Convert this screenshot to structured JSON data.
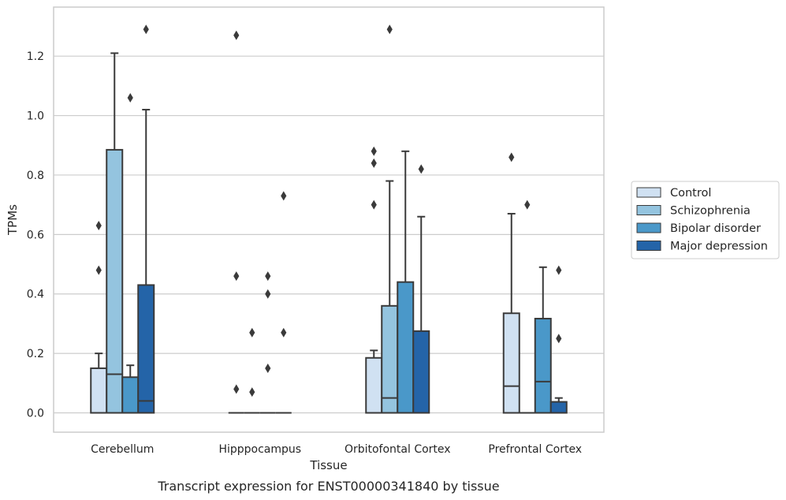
{
  "chart_data": {
    "type": "box",
    "title": "Transcript expression for ENST00000341840 by tissue",
    "xlabel": "Tissue",
    "ylabel": "TPMs",
    "ylim": [
      -0.065,
      1.365
    ],
    "yticks": [
      "0.0",
      "0.2",
      "0.4",
      "0.6",
      "0.8",
      "1.0",
      "1.2"
    ],
    "grid": true,
    "legend_position": "right",
    "categories": [
      "Cerebellum",
      "Hipppocampus",
      "Orbitofontal Cortex",
      "Prefrontal Cortex"
    ],
    "series": [
      {
        "name": "Control",
        "color": "#d0e1f2",
        "boxes": [
          {
            "q1": 0.0,
            "median": 0.0,
            "q3": 0.15,
            "whisker_low": 0.0,
            "whisker_high": 0.2,
            "outliers": [
              0.48,
              0.63
            ]
          },
          {
            "q1": 0.0,
            "median": 0.0,
            "q3": 0.0,
            "whisker_low": 0.0,
            "whisker_high": 0.0,
            "outliers": [
              0.08,
              0.46,
              1.27
            ]
          },
          {
            "q1": 0.0,
            "median": 0.0,
            "q3": 0.185,
            "whisker_low": 0.0,
            "whisker_high": 0.21,
            "outliers": [
              0.7,
              0.84,
              0.88
            ]
          },
          {
            "q1": 0.0,
            "median": 0.09,
            "q3": 0.335,
            "whisker_low": 0.0,
            "whisker_high": 0.67,
            "outliers": [
              0.86
            ]
          }
        ]
      },
      {
        "name": "Schizophrenia",
        "color": "#94c4df",
        "boxes": [
          {
            "q1": 0.0,
            "median": 0.13,
            "q3": 0.885,
            "whisker_low": 0.0,
            "whisker_high": 1.21,
            "outliers": []
          },
          {
            "q1": 0.0,
            "median": 0.0,
            "q3": 0.0,
            "whisker_low": 0.0,
            "whisker_high": 0.0,
            "outliers": [
              0.07,
              0.27
            ]
          },
          {
            "q1": 0.0,
            "median": 0.05,
            "q3": 0.36,
            "whisker_low": 0.0,
            "whisker_high": 0.78,
            "outliers": [
              1.29
            ]
          },
          {
            "q1": 0.0,
            "median": 0.0,
            "q3": 0.0,
            "whisker_low": 0.0,
            "whisker_high": 0.0,
            "outliers": [
              0.7
            ]
          }
        ]
      },
      {
        "name": "Bipolar disorder",
        "color": "#4a98c9",
        "boxes": [
          {
            "q1": 0.0,
            "median": 0.0,
            "q3": 0.12,
            "whisker_low": 0.0,
            "whisker_high": 0.16,
            "outliers": [
              1.06
            ]
          },
          {
            "q1": 0.0,
            "median": 0.0,
            "q3": 0.0,
            "whisker_low": 0.0,
            "whisker_high": 0.0,
            "outliers": [
              0.15,
              0.4,
              0.46
            ]
          },
          {
            "q1": 0.0,
            "median": 0.0,
            "q3": 0.44,
            "whisker_low": 0.0,
            "whisker_high": 0.88,
            "outliers": []
          },
          {
            "q1": 0.0,
            "median": 0.105,
            "q3": 0.317,
            "whisker_low": 0.0,
            "whisker_high": 0.49,
            "outliers": []
          }
        ]
      },
      {
        "name": "Major depression",
        "color": "#2464a8",
        "boxes": [
          {
            "q1": 0.0,
            "median": 0.04,
            "q3": 0.43,
            "whisker_low": 0.0,
            "whisker_high": 1.02,
            "outliers": [
              1.29
            ]
          },
          {
            "q1": 0.0,
            "median": 0.0,
            "q3": 0.0,
            "whisker_low": 0.0,
            "whisker_high": 0.0,
            "outliers": [
              0.27,
              0.73
            ]
          },
          {
            "q1": 0.0,
            "median": 0.0,
            "q3": 0.275,
            "whisker_low": 0.0,
            "whisker_high": 0.66,
            "outliers": [
              0.82
            ]
          },
          {
            "q1": 0.0,
            "median": 0.0,
            "q3": 0.037,
            "whisker_low": 0.0,
            "whisker_high": 0.05,
            "outliers": [
              0.25,
              0.48
            ]
          }
        ]
      }
    ]
  }
}
